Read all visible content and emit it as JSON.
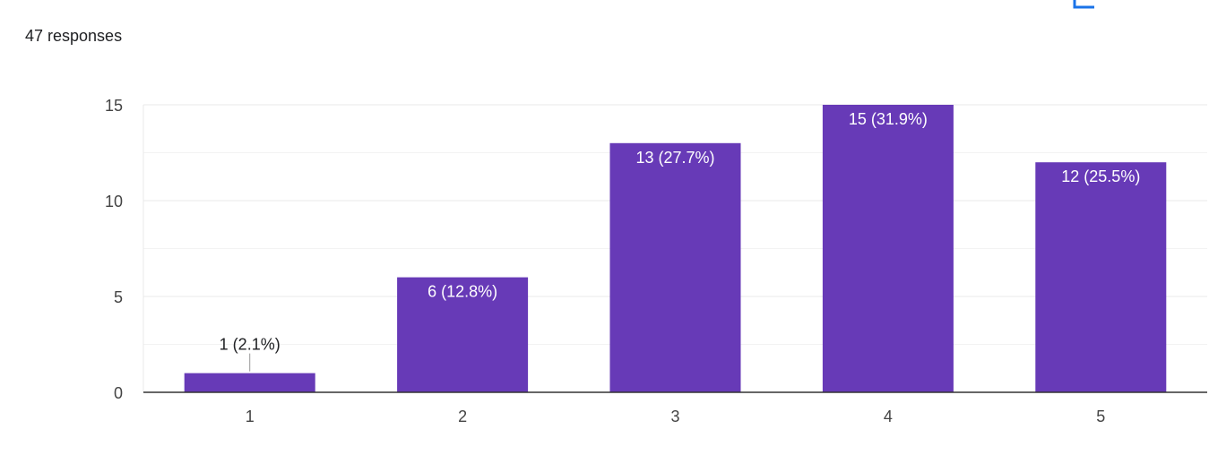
{
  "summary": {
    "responses_label": "47 responses"
  },
  "toolbar": {
    "copy_icon": "copy-chart-icon"
  },
  "chart_data": {
    "type": "bar",
    "categories": [
      "1",
      "2",
      "3",
      "4",
      "5"
    ],
    "values": [
      1,
      6,
      13,
      15,
      12
    ],
    "data_labels": [
      "1 (2.1%)",
      "6 (12.8%)",
      "13 (27.7%)",
      "15 (31.9%)",
      "12 (25.5%)"
    ],
    "ylim": [
      0,
      15
    ],
    "yticks": [
      0,
      5,
      10,
      15
    ],
    "grid": true,
    "legend": "none",
    "xlabel": "",
    "ylabel": "",
    "title": "",
    "colors": {
      "bar": "#673ab7",
      "label_inside": "#ffffff",
      "label_outside": "#202124",
      "gridline": "#e8e8e8",
      "axis": "#333333"
    }
  }
}
